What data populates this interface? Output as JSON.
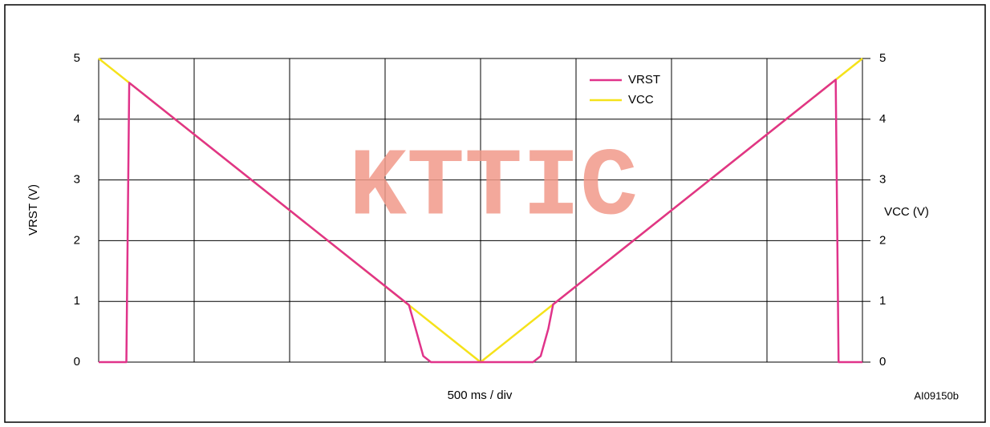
{
  "chart_data": {
    "type": "line",
    "watermark": "KTTIC",
    "y_label": "VRST (V)",
    "y2_label": "VCC (V)",
    "x_label": "500 ms / div",
    "figure_id": "AI09150b",
    "xlim": [
      0,
      8
    ],
    "xticks": [
      0,
      1,
      2,
      3,
      4,
      5,
      6,
      7,
      8
    ],
    "ylim": [
      0,
      5
    ],
    "yticks": [
      0,
      1,
      2,
      3,
      4,
      5
    ],
    "y2lim": [
      0,
      5
    ],
    "y2ticks": [
      0,
      1,
      2,
      3,
      4,
      5
    ],
    "grid": true,
    "legend": "top-right",
    "series": [
      {
        "name": "VCC",
        "color": "#f5e21a",
        "axis": "y2",
        "x": [
          0,
          4,
          8
        ],
        "values": [
          5,
          0,
          5
        ]
      },
      {
        "name": "VRST",
        "color": "#e0338a",
        "x": [
          0,
          0.29,
          0.32,
          3.25,
          3.32,
          3.4,
          3.48,
          4.55,
          4.63,
          4.71,
          4.76,
          7.72,
          7.75,
          8
        ],
        "values": [
          0,
          0,
          4.6,
          0.94,
          0.55,
          0.1,
          0,
          0,
          0.1,
          0.55,
          0.95,
          4.65,
          0,
          0
        ]
      }
    ]
  }
}
